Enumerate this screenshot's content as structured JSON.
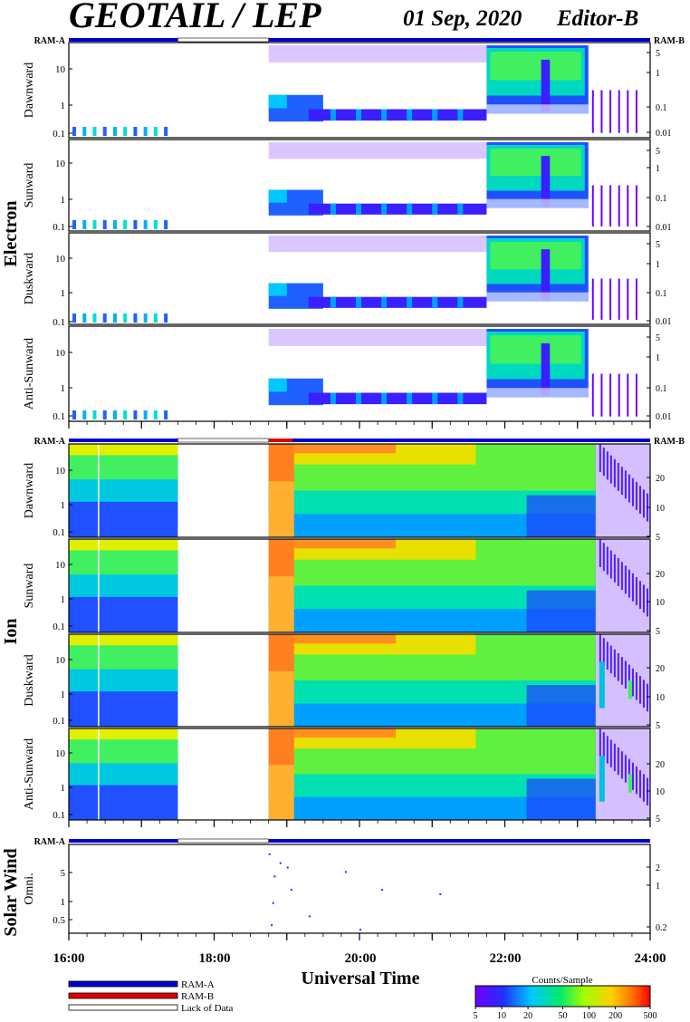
{
  "title": "GEOTAIL / LEP",
  "date": "01 Sep, 2020",
  "editor": "Editor-B",
  "colors": {
    "ram_a": "#0000cc",
    "ram_b": "#dd0000",
    "lack": "#ffffff"
  },
  "chart_data": [
    {
      "type": "heatmap",
      "group": "Electron",
      "mode_bar_left": "RAM-A",
      "mode_bar_right": "RAM-B",
      "panels": [
        {
          "label": "Dawnward",
          "yticks": [
            "10",
            "1",
            "0.1"
          ],
          "rticks": [
            "5",
            "1",
            "0.1",
            "0.01"
          ]
        },
        {
          "label": "Sunward",
          "yticks": [
            "10",
            "1",
            "0.1"
          ],
          "rticks": [
            "5",
            "1",
            "0.1",
            "0.01"
          ]
        },
        {
          "label": "Duskward",
          "yticks": [
            "10",
            "1",
            "0.1"
          ],
          "rticks": [
            "5",
            "1",
            "0.1",
            "0.01"
          ]
        },
        {
          "label": "Anti-Sunward",
          "yticks": [
            "10",
            "1",
            "0.1"
          ],
          "rticks": [
            "5",
            "1",
            "0.1",
            "0.01"
          ]
        }
      ]
    },
    {
      "type": "heatmap",
      "group": "Ion",
      "mode_bar_left": "RAM-A",
      "mode_bar_right": "RAM-B",
      "panels": [
        {
          "label": "Dawnward",
          "yticks": [
            "10",
            "1",
            "0.1"
          ],
          "rticks": [
            "20",
            "10",
            "5"
          ]
        },
        {
          "label": "Sunward",
          "yticks": [
            "10",
            "1",
            "0.1"
          ],
          "rticks": [
            "20",
            "10",
            "5"
          ]
        },
        {
          "label": "Duskward",
          "yticks": [
            "10",
            "1",
            "0.1"
          ],
          "rticks": [
            "20",
            "10",
            "5"
          ]
        },
        {
          "label": "Anti-Sunward",
          "yticks": [
            "10",
            "1",
            "0.1"
          ],
          "rticks": [
            "20",
            "10",
            "5"
          ]
        }
      ]
    },
    {
      "type": "heatmap",
      "group": "Solar Wind",
      "mode_bar_left": "RAM-A",
      "panels": [
        {
          "label": "Omni.",
          "yticks": [
            "5",
            "1",
            "0.5"
          ],
          "rticks": [
            "2",
            "1",
            "0.2"
          ]
        }
      ]
    }
  ],
  "x_axis": {
    "label": "Universal Time",
    "ticks": [
      "16:00",
      "18:00",
      "20:00",
      "22:00",
      "24:00"
    ]
  },
  "legend": {
    "items": [
      "RAM-A",
      "RAM-B",
      "Lack of Data"
    ]
  },
  "colorbar": {
    "title": "Counts/Sample",
    "ticks": [
      "5",
      "10",
      "20",
      "50",
      "100",
      "200",
      "500"
    ]
  }
}
